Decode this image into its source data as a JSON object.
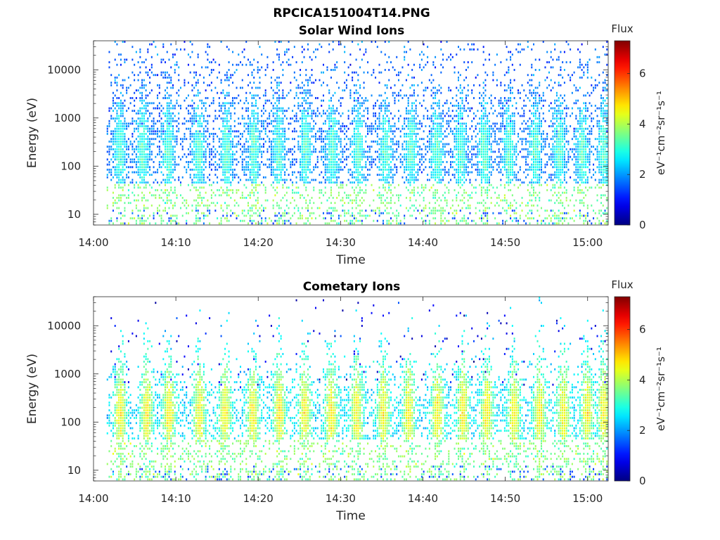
{
  "figure_title": "RPCICA151004T14.PNG",
  "chart_data": [
    {
      "type": "heatmap",
      "title": "Solar Wind Ions",
      "xlabel": "Time",
      "ylabel": "Energy (eV)",
      "x_ticks": [
        "14:00",
        "14:10",
        "14:20",
        "14:30",
        "14:40",
        "14:50",
        "15:00"
      ],
      "x_range_minutes": [
        0,
        62.5
      ],
      "y_ticks": [
        "10",
        "100",
        "1000",
        "10000"
      ],
      "y_scale": "log",
      "y_range": [
        6,
        40000
      ],
      "colorbar": {
        "title": "Flux",
        "unit": "eV⁻¹cm⁻²sr⁻¹s⁻¹",
        "ticks": [
          "0",
          "2",
          "4",
          "6"
        ],
        "range": [
          0,
          7.3
        ],
        "colormap": "jet"
      },
      "data_start_minute": 1.6,
      "data_end_minute": 62.5,
      "bursts_minutes": [
        3.2,
        6.0,
        9.1,
        12.8,
        16.2,
        19.5,
        22.5,
        25.8,
        29.0,
        32.2,
        35.5,
        38.6,
        41.7,
        44.6,
        47.5,
        50.5,
        53.7,
        56.6,
        59.4,
        62.0
      ],
      "core_energy_eV": 200,
      "core_intensity": 3.0,
      "background_high_energy_intensity": 1.6
    },
    {
      "type": "heatmap",
      "title": "Cometary Ions",
      "xlabel": "Time",
      "ylabel": "Energy (eV)",
      "x_ticks": [
        "14:00",
        "14:10",
        "14:20",
        "14:30",
        "14:40",
        "14:50",
        "15:00"
      ],
      "x_range_minutes": [
        0,
        62.5
      ],
      "y_ticks": [
        "10",
        "100",
        "1000",
        "10000"
      ],
      "y_scale": "log",
      "y_range": [
        6,
        40000
      ],
      "colorbar": {
        "title": "Flux",
        "unit": "eV⁻¹cm⁻²sr⁻¹s⁻¹",
        "ticks": [
          "0",
          "2",
          "4",
          "6"
        ],
        "range": [
          0,
          7.3
        ],
        "colormap": "jet"
      },
      "data_start_minute": 1.6,
      "data_end_minute": 62.5,
      "bursts_minutes": [
        3.3,
        6.5,
        9.2,
        12.9,
        16.0,
        19.4,
        22.6,
        25.7,
        28.9,
        32.0,
        35.2,
        38.3,
        41.8,
        44.9,
        47.8,
        51.1,
        54.2,
        57.1,
        60.0,
        62.0
      ],
      "core_energy_eV": 150,
      "core_intensity": 4.4,
      "background_high_energy_intensity": 0.8
    }
  ]
}
